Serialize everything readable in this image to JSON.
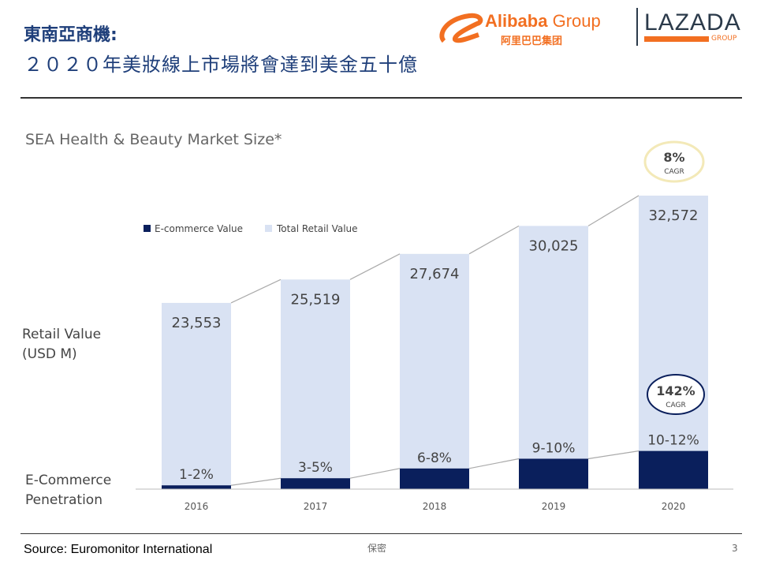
{
  "header": {
    "title_line1": "東南亞商機:",
    "title_line2": "２０２０年美妝線上市場將會達到美金五十億"
  },
  "logos": {
    "alibaba": "Alibaba Group",
    "alibaba_cn": "阿里巴巴集团",
    "lazada": "LAZADA",
    "lazada_sub": "GROUP"
  },
  "footer": {
    "source": "Source: Euromonitor International",
    "confidential": "保密",
    "page": "3"
  },
  "colors": {
    "ecommerce": "#0a1f5c",
    "total": "#d9e2f3",
    "alibaba_orange": "#f26f21",
    "lazada_navy": "#2b3a4a"
  },
  "chart_data": {
    "type": "bar",
    "title": "SEA Health & Beauty Market Size*",
    "categories": [
      "2016",
      "2017",
      "2018",
      "2019",
      "2020"
    ],
    "series": [
      {
        "name": "E-commerce Value",
        "labels": [
          "1-2%",
          "3-5%",
          "6-8%",
          "9-10%",
          "10-12%"
        ]
      },
      {
        "name": "Total Retail Value",
        "values": [
          23553,
          25519,
          27674,
          30025,
          32572
        ],
        "labels": [
          "23,553",
          "25,519",
          "27,674",
          "30,025",
          "32,572"
        ]
      }
    ],
    "ylabel_top": "Retail Value (USD M)",
    "ylabel_bottom": "E-Commerce Penetration",
    "ylabel_top_lines": [
      "Retail Value",
      "(USD M)"
    ],
    "ylabel_bottom_lines": [
      "E-Commerce",
      "Penetration"
    ],
    "annotations": [
      {
        "value": "8%",
        "sub": "CAGR"
      },
      {
        "value": "142%",
        "sub": "CAGR"
      }
    ],
    "legend": "top-left"
  }
}
